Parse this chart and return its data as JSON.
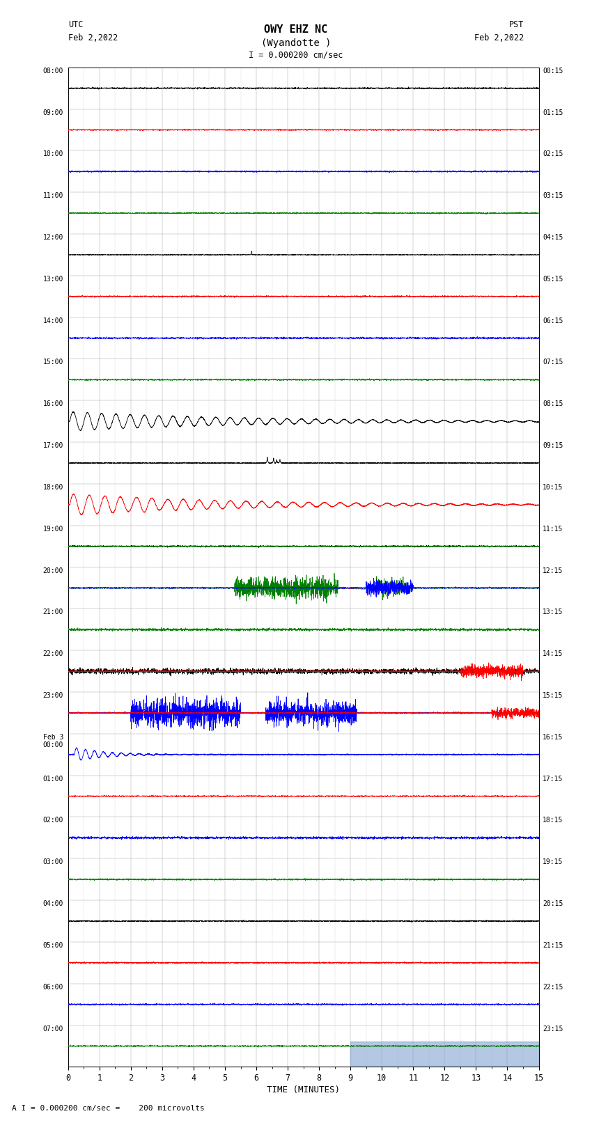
{
  "title_line1": "OWY EHZ NC",
  "title_line2": "(Wyandotte )",
  "scale_label": "I = 0.000200 cm/sec",
  "bottom_label": "A I = 0.000200 cm/sec =    200 microvolts",
  "xlabel": "TIME (MINUTES)",
  "utc_label1": "UTC",
  "utc_label2": "Feb 2,2022",
  "pst_label1": "PST",
  "pst_label2": "Feb 2,2022",
  "left_times": [
    "08:00",
    "09:00",
    "10:00",
    "11:00",
    "12:00",
    "13:00",
    "14:00",
    "15:00",
    "16:00",
    "17:00",
    "18:00",
    "19:00",
    "20:00",
    "21:00",
    "22:00",
    "23:00",
    "Feb 3\n00:00",
    "01:00",
    "02:00",
    "03:00",
    "04:00",
    "05:00",
    "06:00",
    "07:00"
  ],
  "right_times": [
    "00:15",
    "01:15",
    "02:15",
    "03:15",
    "04:15",
    "05:15",
    "06:15",
    "07:15",
    "08:15",
    "09:15",
    "10:15",
    "11:15",
    "12:15",
    "13:15",
    "14:15",
    "15:15",
    "16:15",
    "17:15",
    "18:15",
    "19:15",
    "20:15",
    "21:15",
    "22:15",
    "23:15"
  ],
  "num_rows": 24,
  "xlim": [
    0,
    15
  ],
  "bg_color": "#ffffff",
  "grid_color": "#aaaaaa",
  "colors_cycle": [
    "black",
    "red",
    "blue",
    "green"
  ]
}
